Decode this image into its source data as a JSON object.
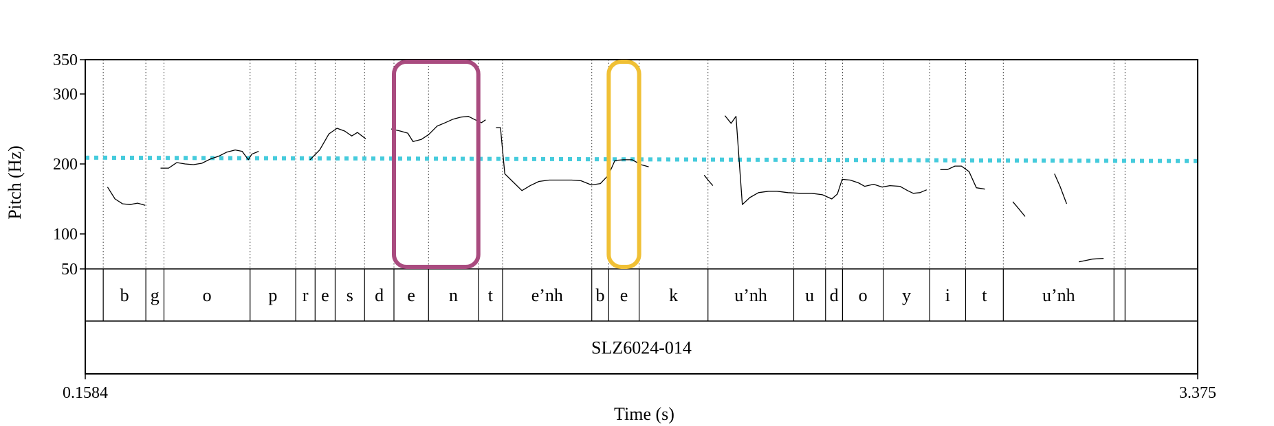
{
  "chart_data": {
    "type": "line",
    "title": "",
    "xlabel": "Time (s)",
    "ylabel": "Pitch (Hz)",
    "xlim": [
      0.1584,
      3.375
    ],
    "ylim": [
      50,
      350
    ],
    "x_tick_labels": [
      "0.1584",
      "3.375"
    ],
    "y_ticks": [
      50,
      100,
      200,
      300,
      350
    ],
    "y_tick_labels": [
      "50",
      "100",
      "200",
      "300",
      "350"
    ],
    "reference_line": {
      "value": 209,
      "style": "dotted",
      "color": "#45cbdc"
    },
    "series": [
      {
        "color": "#000000",
        "segments": [
          [
            [
              0.2228,
              167
            ],
            [
              0.2445,
              150
            ],
            [
              0.2661,
              143
            ],
            [
              0.2881,
              142
            ],
            [
              0.3097,
              144
            ],
            [
              0.3314,
              141
            ]
          ],
          [
            [
              0.376,
              194
            ],
            [
              0.3994,
              194
            ],
            [
              0.423,
              202
            ],
            [
              0.4472,
              200
            ],
            [
              0.4714,
              199
            ],
            [
              0.4955,
              201
            ],
            [
              0.5197,
              207
            ],
            [
              0.5438,
              211
            ],
            [
              0.568,
              217
            ],
            [
              0.592,
              220
            ],
            [
              0.612,
              218
            ],
            [
              0.63,
              206
            ],
            [
              0.64,
              214
            ],
            [
              0.6598,
              218
            ]
          ],
          [
            [
              0.8083,
              206
            ],
            [
              0.8363,
              220
            ],
            [
              0.8632,
              243
            ],
            [
              0.8865,
              251
            ],
            [
              0.9088,
              247
            ],
            [
              0.929,
              240
            ],
            [
              0.9455,
              245
            ],
            [
              0.9694,
              236
            ]
          ],
          [
            [
              1.043,
              250
            ],
            [
              1.07,
              247
            ],
            [
              1.091,
              244
            ],
            [
              1.106,
              232
            ],
            [
              1.13,
              235
            ],
            [
              1.1515,
              242
            ],
            [
              1.1757,
              254
            ],
            [
              1.1996,
              259
            ],
            [
              1.222,
              264
            ],
            [
              1.2445,
              267
            ],
            [
              1.266,
              268
            ],
            [
              1.286,
              263
            ],
            [
              1.304,
              259
            ],
            [
              1.316,
              263
            ]
          ],
          [
            [
              1.346,
              252
            ],
            [
              1.359,
              252
            ],
            [
              1.3714,
              186
            ],
            [
              1.392,
              176
            ],
            [
              1.421,
              162
            ],
            [
              1.445,
              169
            ],
            [
              1.47,
              175
            ],
            [
              1.5,
              177
            ],
            [
              1.535,
              177
            ],
            [
              1.565,
              177
            ],
            [
              1.592,
              176
            ],
            [
              1.622,
              170
            ],
            [
              1.648,
              172
            ],
            [
              1.671,
              184
            ],
            [
              1.69,
              205
            ],
            [
              1.715,
              206
            ],
            [
              1.74,
              206
            ],
            [
              1.765,
              199
            ],
            [
              1.7876,
              196
            ]
          ],
          [
            [
              1.948,
              184
            ],
            [
              1.961,
              176
            ],
            [
              1.973,
              169
            ]
          ],
          [
            [
              2.008,
              269
            ],
            [
              2.026,
              258
            ],
            [
              2.04,
              268
            ],
            [
              2.0584,
              142
            ],
            [
              2.08,
              152
            ],
            [
              2.105,
              159
            ],
            [
              2.134,
              161
            ],
            [
              2.159,
              161
            ],
            [
              2.19,
              159
            ],
            [
              2.226,
              158
            ],
            [
              2.259,
              158
            ],
            [
              2.29,
              156
            ],
            [
              2.317,
              150
            ],
            [
              2.333,
              157
            ],
            [
              2.347,
              178
            ],
            [
              2.37,
              177
            ],
            [
              2.394,
              173
            ],
            [
              2.412,
              168
            ],
            [
              2.438,
              171
            ],
            [
              2.463,
              167
            ],
            [
              2.485,
              169
            ],
            [
              2.514,
              168
            ],
            [
              2.536,
              162
            ],
            [
              2.5525,
              158
            ],
            [
              2.572,
              159
            ],
            [
              2.5914,
              163
            ]
          ],
          [
            [
              2.6306,
              192
            ],
            [
              2.6514,
              192
            ],
            [
              2.673,
              197
            ],
            [
              2.692,
              197
            ],
            [
              2.714,
              189
            ],
            [
              2.735,
              166
            ],
            [
              2.76,
              164
            ]
          ],
          [
            [
              2.8405,
              146
            ],
            [
              2.856,
              137
            ],
            [
              2.8758,
              125
            ]
          ],
          [
            [
              2.9608,
              186
            ],
            [
              2.977,
              168
            ],
            [
              2.996,
              143
            ]
          ],
          [
            [
              3.0312,
              60
            ],
            [
              3.07,
              64
            ],
            [
              3.1029,
              65
            ]
          ]
        ]
      }
    ],
    "tiers": [
      {
        "intervals": [
          {
            "start": 0.1584,
            "end": 0.2104,
            "label": ""
          },
          {
            "start": 0.2104,
            "end": 0.3336,
            "label": "b"
          },
          {
            "start": 0.3336,
            "end": 0.386,
            "label": "g"
          },
          {
            "start": 0.386,
            "end": 0.635,
            "label": "o"
          },
          {
            "start": 0.635,
            "end": 0.767,
            "label": "p"
          },
          {
            "start": 0.767,
            "end": 0.823,
            "label": "r"
          },
          {
            "start": 0.823,
            "end": 0.881,
            "label": "e"
          },
          {
            "start": 0.881,
            "end": 0.966,
            "label": "s"
          },
          {
            "start": 0.966,
            "end": 1.051,
            "label": "d"
          },
          {
            "start": 1.051,
            "end": 1.151,
            "label": "e"
          },
          {
            "start": 1.151,
            "end": 1.295,
            "label": "n"
          },
          {
            "start": 1.295,
            "end": 1.365,
            "label": "t"
          },
          {
            "start": 1.365,
            "end": 1.623,
            "label": "e’nh"
          },
          {
            "start": 1.623,
            "end": 1.672,
            "label": "b"
          },
          {
            "start": 1.672,
            "end": 1.76,
            "label": "e"
          },
          {
            "start": 1.76,
            "end": 1.959,
            "label": "k"
          },
          {
            "start": 1.959,
            "end": 2.207,
            "label": "u’nh"
          },
          {
            "start": 2.207,
            "end": 2.299,
            "label": "u"
          },
          {
            "start": 2.299,
            "end": 2.348,
            "label": "d"
          },
          {
            "start": 2.348,
            "end": 2.466,
            "label": "o"
          },
          {
            "start": 2.466,
            "end": 2.6,
            "label": "y"
          },
          {
            "start": 2.6,
            "end": 2.704,
            "label": "i"
          },
          {
            "start": 2.704,
            "end": 2.813,
            "label": "t"
          },
          {
            "start": 2.813,
            "end": 3.133,
            "label": "u’nh"
          },
          {
            "start": 3.133,
            "end": 3.165,
            "label": ""
          },
          {
            "start": 3.165,
            "end": 3.375,
            "label": ""
          }
        ]
      },
      {
        "intervals": [
          {
            "start": 0.1584,
            "end": 3.375,
            "label": "SLZ6024-014"
          }
        ]
      }
    ],
    "highlights": [
      {
        "start": 1.051,
        "end": 1.295,
        "color": "#a94b7f"
      },
      {
        "start": 1.672,
        "end": 1.76,
        "color": "#f0c035"
      }
    ],
    "grid": false,
    "legend": "none"
  }
}
